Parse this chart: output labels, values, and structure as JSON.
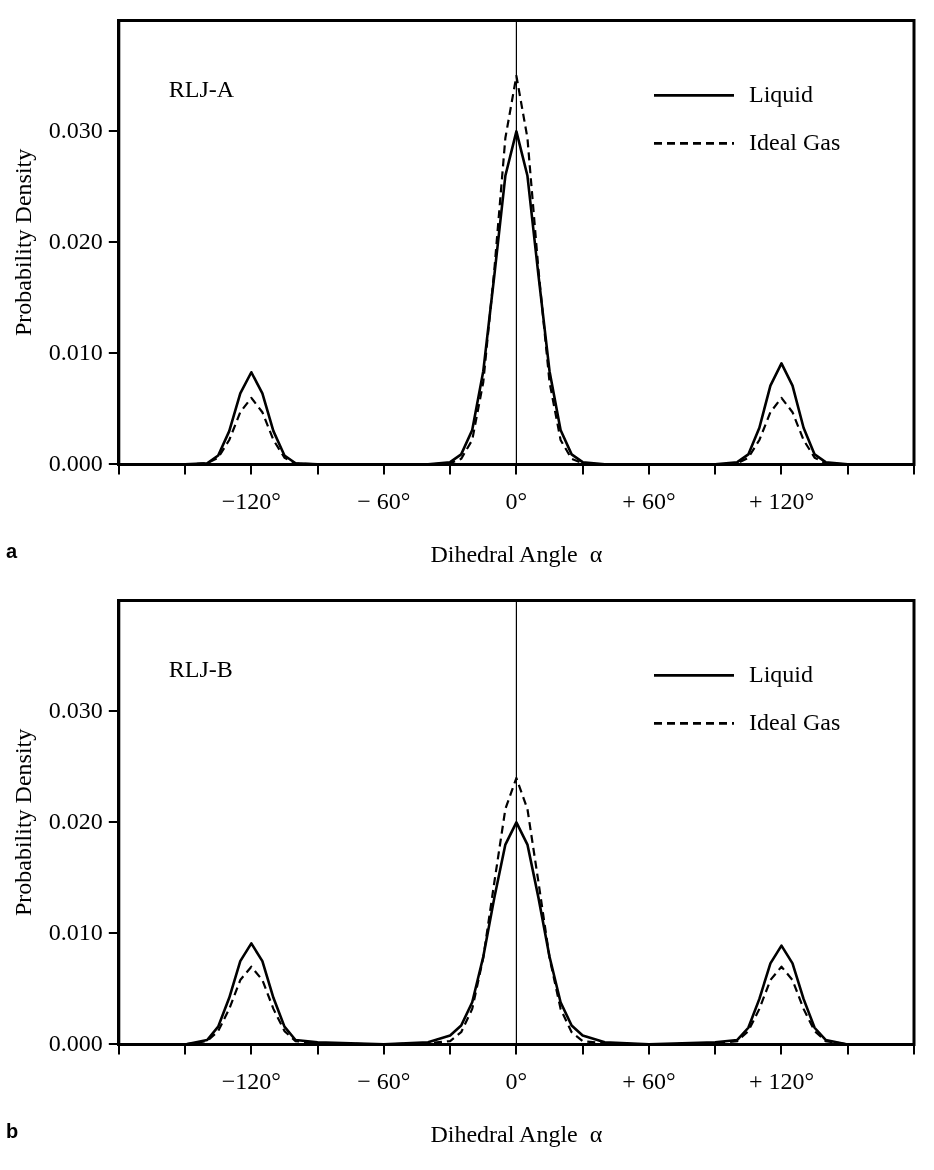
{
  "chart_data": [
    {
      "type": "line",
      "title": "RLJ-A",
      "xlabel": "Dihedral Angle  α",
      "ylabel": "Probability Density",
      "annotations": [
        "a"
      ],
      "legend": "top right",
      "x": [
        -180,
        -150,
        -140,
        -135,
        -130,
        -125,
        -120,
        -115,
        -110,
        -105,
        -100,
        -90,
        -60,
        -40,
        -30,
        -25,
        -20,
        -15,
        -10,
        -5,
        0,
        5,
        10,
        15,
        20,
        25,
        30,
        40,
        60,
        90,
        100,
        105,
        110,
        115,
        120,
        125,
        130,
        135,
        140,
        150,
        180
      ],
      "xlim": [
        -180,
        180
      ],
      "xticks": [
        {
          "value": -180,
          "label": null
        },
        {
          "value": -150,
          "label": null
        },
        {
          "value": -120,
          "label": "−120°"
        },
        {
          "value": -90,
          "label": null
        },
        {
          "value": -60,
          "label": "− 60°"
        },
        {
          "value": -30,
          "label": null
        },
        {
          "value": 0,
          "label": "0°"
        },
        {
          "value": 30,
          "label": null
        },
        {
          "value": 60,
          "label": "+ 60°"
        },
        {
          "value": 90,
          "label": null
        },
        {
          "value": 120,
          "label": "+ 120°"
        },
        {
          "value": 150,
          "label": null
        },
        {
          "value": 180,
          "label": null
        }
      ],
      "ylim": [
        0,
        0.04
      ],
      "yticks": [
        {
          "value": 0,
          "label": "0.000"
        },
        {
          "value": 0.01,
          "label": "0.010"
        },
        {
          "value": 0.02,
          "label": "0.020"
        },
        {
          "value": 0.03,
          "label": "0.030"
        }
      ],
      "ref_lines": [
        {
          "axis": "x",
          "value": 0,
          "color": "#000000"
        }
      ],
      "series": [
        {
          "name": "Liquid",
          "color": "#000000",
          "line_style": "solid",
          "values": [
            0,
            0,
            0.0001,
            0.0008,
            0.003,
            0.0064,
            0.0083,
            0.0064,
            0.003,
            0.0008,
            0.0001,
            0,
            0,
            0,
            0.0002,
            0.0009,
            0.0031,
            0.0084,
            0.017,
            0.026,
            0.03,
            0.026,
            0.017,
            0.0084,
            0.0031,
            0.0009,
            0.0002,
            0,
            0,
            0,
            0.0002,
            0.0009,
            0.0033,
            0.0071,
            0.0091,
            0.0071,
            0.0033,
            0.0009,
            0.0002,
            0,
            0
          ]
        },
        {
          "name": "Ideal Gas",
          "color": "#000000",
          "line_style": "dashed",
          "values": [
            0,
            0,
            0.0001,
            0.0006,
            0.0022,
            0.0047,
            0.006,
            0.0047,
            0.0022,
            0.0006,
            0.0001,
            0,
            0,
            0,
            0.0001,
            0.0005,
            0.0022,
            0.0074,
            0.0175,
            0.0294,
            0.035,
            0.0294,
            0.0175,
            0.0074,
            0.0022,
            0.0005,
            0.0001,
            0,
            0,
            0,
            0.0001,
            0.0006,
            0.0022,
            0.0047,
            0.006,
            0.0047,
            0.0022,
            0.0006,
            0.0001,
            0,
            0
          ]
        }
      ]
    },
    {
      "type": "line",
      "title": "RLJ-B",
      "xlabel": "Dihedral Angle  α",
      "ylabel": "Probability Density",
      "annotations": [
        "b"
      ],
      "legend": "top right",
      "x": [
        -180,
        -150,
        -140,
        -135,
        -130,
        -125,
        -120,
        -115,
        -110,
        -105,
        -100,
        -90,
        -60,
        -40,
        -30,
        -25,
        -20,
        -15,
        -10,
        -5,
        0,
        5,
        10,
        15,
        20,
        25,
        30,
        40,
        60,
        90,
        100,
        105,
        110,
        115,
        120,
        125,
        130,
        135,
        140,
        150,
        180
      ],
      "xlim": [
        -180,
        180
      ],
      "xticks": [
        {
          "value": -180,
          "label": null
        },
        {
          "value": -150,
          "label": null
        },
        {
          "value": -120,
          "label": "−120°"
        },
        {
          "value": -90,
          "label": null
        },
        {
          "value": -60,
          "label": "− 60°"
        },
        {
          "value": -30,
          "label": null
        },
        {
          "value": 0,
          "label": "0°"
        },
        {
          "value": 30,
          "label": null
        },
        {
          "value": 60,
          "label": "+ 60°"
        },
        {
          "value": 90,
          "label": null
        },
        {
          "value": 120,
          "label": "+ 120°"
        },
        {
          "value": 150,
          "label": null
        },
        {
          "value": 180,
          "label": null
        }
      ],
      "ylim": [
        0,
        0.04
      ],
      "yticks": [
        {
          "value": 0,
          "label": "0.000"
        },
        {
          "value": 0.01,
          "label": "0.010"
        },
        {
          "value": 0.02,
          "label": "0.020"
        },
        {
          "value": 0.03,
          "label": "0.030"
        }
      ],
      "ref_lines": [
        {
          "axis": "x",
          "value": 0,
          "color": "#000000"
        }
      ],
      "series": [
        {
          "name": "Liquid",
          "color": "#000000",
          "line_style": "solid",
          "values": [
            0,
            0,
            0.0004,
            0.0016,
            0.0042,
            0.0075,
            0.0091,
            0.0075,
            0.0042,
            0.0016,
            0.0004,
            0.0002,
            0,
            0.0002,
            0.0008,
            0.0017,
            0.0038,
            0.0079,
            0.0132,
            0.018,
            0.02,
            0.018,
            0.0132,
            0.0079,
            0.0038,
            0.0017,
            0.0008,
            0.0002,
            0,
            0.0002,
            0.0004,
            0.0015,
            0.0041,
            0.0073,
            0.0089,
            0.0073,
            0.0041,
            0.0015,
            0.0004,
            0,
            0
          ]
        },
        {
          "name": "Ideal Gas",
          "color": "#000000",
          "line_style": "dashed",
          "values": [
            0,
            0,
            0.0003,
            0.0012,
            0.0032,
            0.0058,
            0.007,
            0.0058,
            0.0032,
            0.0012,
            0.0003,
            0.0001,
            0,
            0.0001,
            0.0003,
            0.0011,
            0.0032,
            0.0078,
            0.0146,
            0.0212,
            0.024,
            0.0212,
            0.0146,
            0.0078,
            0.0032,
            0.0011,
            0.0003,
            0.0001,
            0,
            0.0001,
            0.0003,
            0.0012,
            0.0032,
            0.0058,
            0.007,
            0.0058,
            0.0032,
            0.0012,
            0.0003,
            0,
            0
          ]
        }
      ]
    }
  ]
}
